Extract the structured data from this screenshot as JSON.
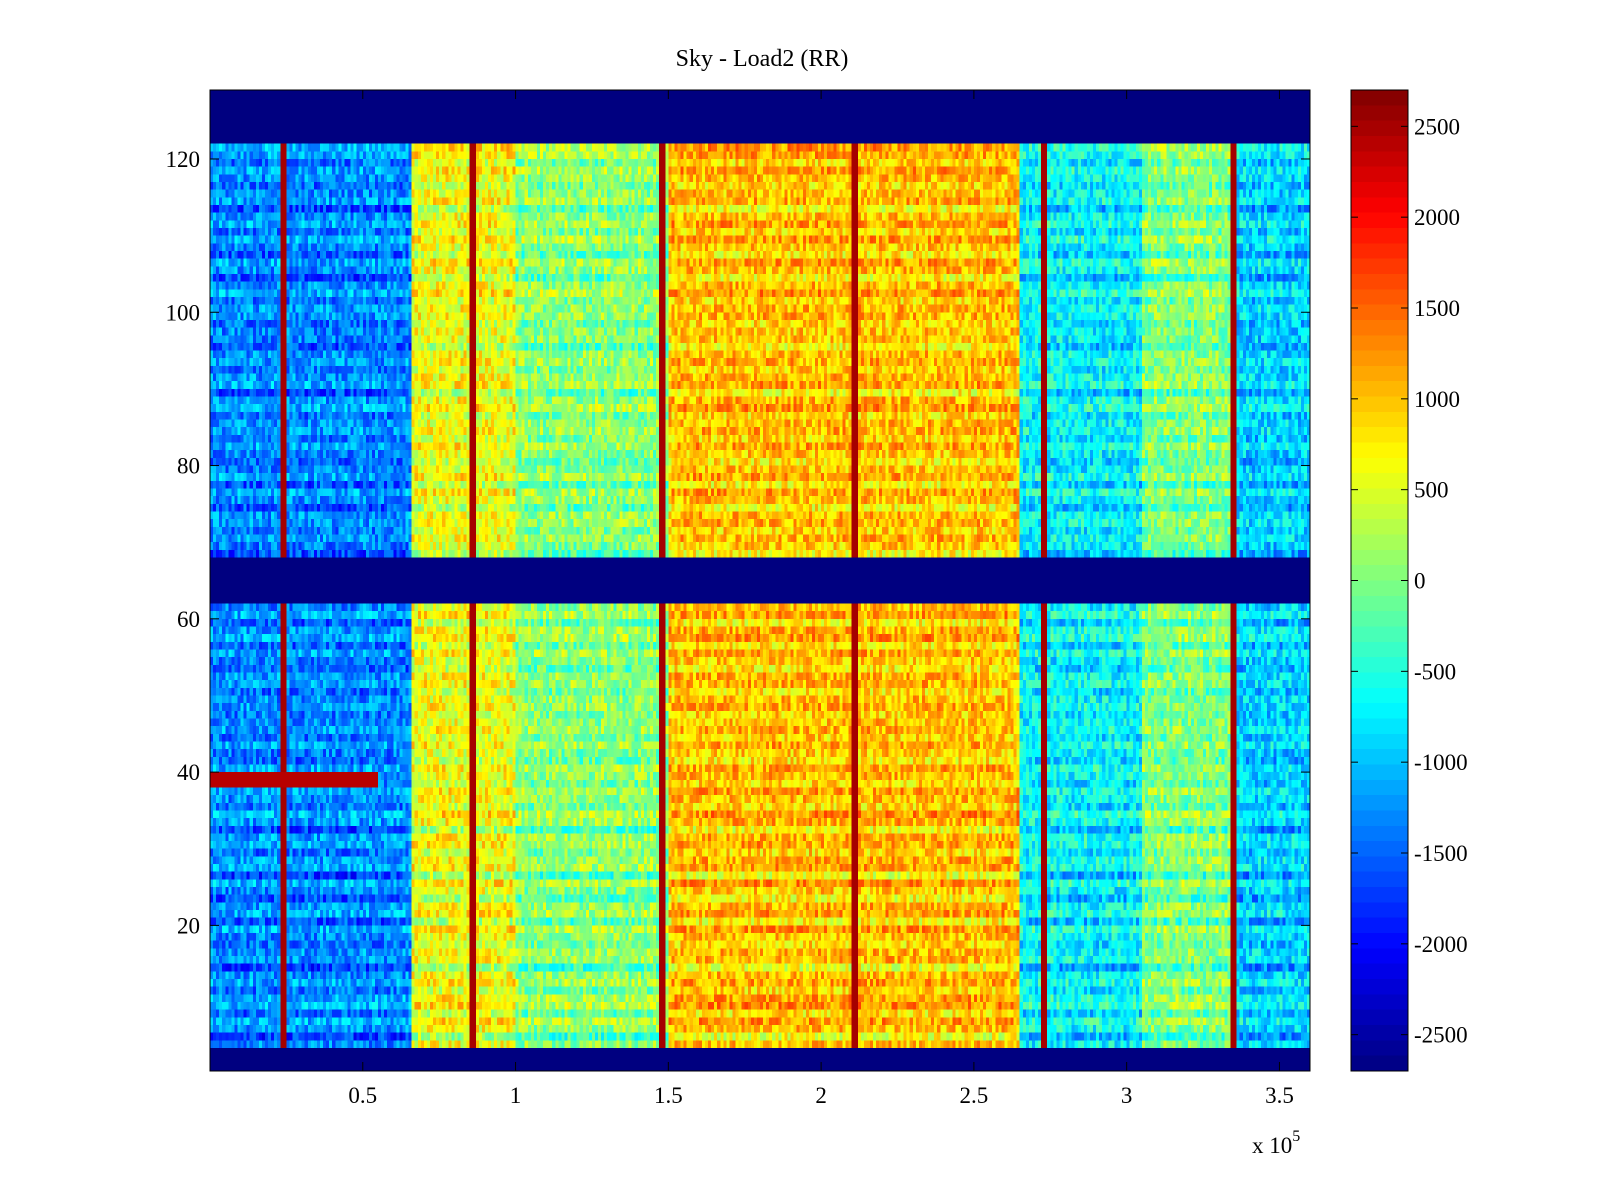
{
  "chart_data": {
    "type": "heatmap",
    "title": "Sky - Load2 (RR)",
    "xlabel": "",
    "ylabel": "",
    "x_multiplier_label": "x 10",
    "x_multiplier_exponent": "5",
    "xlim": [
      0,
      3.6
    ],
    "ylim": [
      1,
      129
    ],
    "x_ticks": [
      0.5,
      1,
      1.5,
      2,
      2.5,
      3,
      3.5
    ],
    "x_tick_labels": [
      "0.5",
      "1",
      "1.5",
      "2",
      "2.5",
      "3",
      "3.5"
    ],
    "y_ticks": [
      20,
      40,
      60,
      80,
      100,
      120
    ],
    "y_tick_labels": [
      "20",
      "40",
      "60",
      "80",
      "100",
      "120"
    ],
    "colormap": "jet",
    "clim": [
      -2700,
      2700
    ],
    "colorbar_ticks": [
      2500,
      2000,
      1500,
      1000,
      500,
      0,
      -500,
      -1000,
      -1500,
      -2000,
      -2500
    ],
    "colorbar_tick_labels": [
      "2500",
      "2000",
      "1500",
      "1000",
      "500",
      "0",
      "-500",
      "-1000",
      "-1500",
      "-2000",
      "-2500"
    ],
    "masked_row_bands": [
      [
        1,
        4
      ],
      [
        62,
        68
      ],
      [
        122,
        129
      ]
    ],
    "masked_value": -2700,
    "column_segments": [
      {
        "x_start": 0.0,
        "x_end": 0.66,
        "level": -1200
      },
      {
        "x_start": 0.66,
        "x_end": 1.0,
        "level": 700
      },
      {
        "x_start": 1.0,
        "x_end": 1.5,
        "level": 150
      },
      {
        "x_start": 1.5,
        "x_end": 2.65,
        "level": 1100
      },
      {
        "x_start": 2.65,
        "x_end": 3.05,
        "level": -600
      },
      {
        "x_start": 3.05,
        "x_end": 3.35,
        "level": 100
      },
      {
        "x_start": 3.35,
        "x_end": 3.6,
        "level": -800
      }
    ],
    "spike_columns_x": [
      0.24,
      0.86,
      1.48,
      2.11,
      2.73,
      3.35
    ],
    "spike_value": 2500,
    "hot_row": {
      "y": 39,
      "x_start": 0.0,
      "x_end": 0.55,
      "value": 2400
    }
  },
  "colors": {
    "background": "#ffffff",
    "axis": "#000000",
    "mask": "#000080"
  }
}
